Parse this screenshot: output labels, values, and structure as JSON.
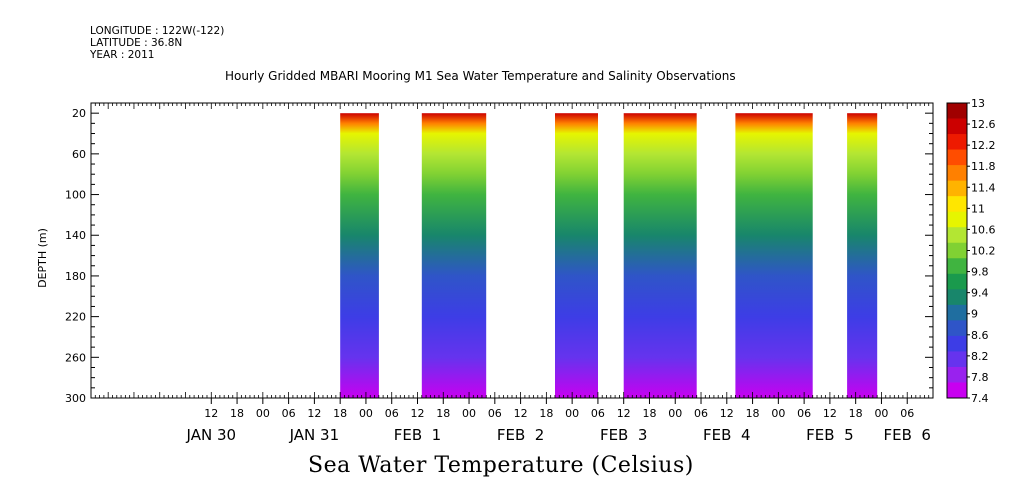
{
  "meta": {
    "longitude": "LONGITUDE : 122W(-122)",
    "latitude": "LATITUDE : 36.8N",
    "year": "YEAR : 2011"
  },
  "title": "Hourly Gridded MBARI Mooring M1 Sea Water Temperature and Salinity Observations",
  "bottom_title": "Sea Water Temperature (Celsius)",
  "chart_data": {
    "type": "heatmap",
    "title": "Hourly Gridded MBARI Mooring M1 Sea Water Temperature and Salinity Observations",
    "xlabel": "",
    "ylabel": "DEPTH (m)",
    "colorbar_label": "Sea Water Temperature (Celsius)",
    "y_axis": {
      "range": [
        10,
        300
      ],
      "inverted": true,
      "tick_values": [
        20,
        60,
        100,
        140,
        180,
        220,
        260,
        300
      ],
      "tick_labels": [
        "20",
        "60",
        "100",
        "140",
        "180",
        "220",
        "260",
        "300"
      ]
    },
    "x_axis": {
      "start": "2011-01-29T08:00",
      "end": "2011-02-06T12:00",
      "hour_ticks": [
        {
          "t": "2011-01-30T12:00",
          "label": "12"
        },
        {
          "t": "2011-01-30T18:00",
          "label": "18"
        },
        {
          "t": "2011-01-31T00:00",
          "label": "00"
        },
        {
          "t": "2011-01-31T06:00",
          "label": "06"
        },
        {
          "t": "2011-01-31T12:00",
          "label": "12"
        },
        {
          "t": "2011-01-31T18:00",
          "label": "18"
        },
        {
          "t": "2011-02-01T00:00",
          "label": "00"
        },
        {
          "t": "2011-02-01T06:00",
          "label": "06"
        },
        {
          "t": "2011-02-01T12:00",
          "label": "12"
        },
        {
          "t": "2011-02-01T18:00",
          "label": "18"
        },
        {
          "t": "2011-02-02T00:00",
          "label": "00"
        },
        {
          "t": "2011-02-02T06:00",
          "label": "06"
        },
        {
          "t": "2011-02-02T12:00",
          "label": "12"
        },
        {
          "t": "2011-02-02T18:00",
          "label": "18"
        },
        {
          "t": "2011-02-03T00:00",
          "label": "00"
        },
        {
          "t": "2011-02-03T06:00",
          "label": "06"
        },
        {
          "t": "2011-02-03T12:00",
          "label": "12"
        },
        {
          "t": "2011-02-03T18:00",
          "label": "18"
        },
        {
          "t": "2011-02-04T00:00",
          "label": "00"
        },
        {
          "t": "2011-02-04T06:00",
          "label": "06"
        },
        {
          "t": "2011-02-04T12:00",
          "label": "12"
        },
        {
          "t": "2011-02-04T18:00",
          "label": "18"
        },
        {
          "t": "2011-02-05T00:00",
          "label": "00"
        },
        {
          "t": "2011-02-05T06:00",
          "label": "06"
        },
        {
          "t": "2011-02-05T12:00",
          "label": "12"
        },
        {
          "t": "2011-02-05T18:00",
          "label": "18"
        },
        {
          "t": "2011-02-06T00:00",
          "label": "00"
        },
        {
          "t": "2011-02-06T06:00",
          "label": "06"
        }
      ],
      "date_labels": [
        {
          "t": "2011-01-30T12:00",
          "label": "JAN 30"
        },
        {
          "t": "2011-01-31T12:00",
          "label": "JAN 31"
        },
        {
          "t": "2011-02-01T12:00",
          "label": "FEB  1"
        },
        {
          "t": "2011-02-02T12:00",
          "label": "FEB  2"
        },
        {
          "t": "2011-02-03T12:00",
          "label": "FEB  3"
        },
        {
          "t": "2011-02-04T12:00",
          "label": "FEB  4"
        },
        {
          "t": "2011-02-05T12:00",
          "label": "FEB  5"
        },
        {
          "t": "2011-02-06T06:00",
          "label": "FEB  6"
        }
      ]
    },
    "colorbar": {
      "levels": [
        13,
        12.6,
        12.2,
        11.8,
        11.4,
        11,
        10.6,
        10.2,
        9.8,
        9.4,
        9,
        8.6,
        8.2,
        7.8,
        7.4
      ],
      "labels": [
        "13",
        "12.6",
        "12.2",
        "11.8",
        "11.4",
        "11",
        "10.6",
        "10.2",
        "9.8",
        "9.4",
        "9",
        "8.6",
        "8.2",
        "7.8",
        "7.4"
      ],
      "colors": [
        "#a00000",
        "#cc0000",
        "#ee1a00",
        "#ff4d00",
        "#ff8000",
        "#ffb300",
        "#ffe600",
        "#e6f500",
        "#b3e633",
        "#80d133",
        "#40b440",
        "#1a9a4d",
        "#18866b",
        "#1f6ea0",
        "#2f55c8",
        "#3d3de6",
        "#6633ee",
        "#9922ee",
        "#c800f0"
      ]
    },
    "data_segments": [
      {
        "start": "2011-01-31T18:00",
        "end": "2011-02-01T03:00"
      },
      {
        "start": "2011-02-01T13:00",
        "end": "2011-02-02T04:00"
      },
      {
        "start": "2011-02-02T20:00",
        "end": "2011-02-03T06:00"
      },
      {
        "start": "2011-02-03T12:00",
        "end": "2011-02-04T05:00"
      },
      {
        "start": "2011-02-04T14:00",
        "end": "2011-02-05T08:00"
      },
      {
        "start": "2011-02-05T16:00",
        "end": "2011-02-05T23:00"
      }
    ],
    "temperature_profile": {
      "depths": [
        20,
        30,
        40,
        60,
        80,
        100,
        140,
        180,
        220,
        260,
        300
      ],
      "temperatures": [
        12.5,
        11.6,
        10.9,
        10.4,
        10.1,
        9.8,
        9.3,
        8.8,
        8.4,
        8.0,
        7.5
      ]
    }
  }
}
